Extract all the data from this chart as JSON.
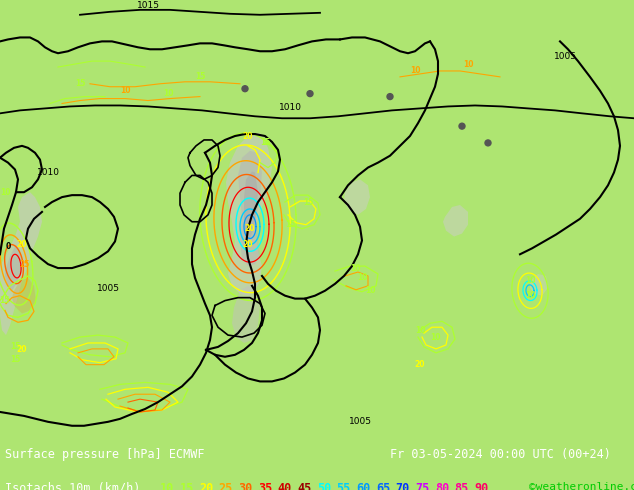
{
  "background_color": "#aee571",
  "fig_width": 6.34,
  "fig_height": 4.9,
  "dpi": 100,
  "footer_line1": "Surface pressure [hPa] ECMWF",
  "footer_line1_right": "Fr 03-05-2024 00:00 UTC (00+24)",
  "footer_line2_label": "Isotachs 10m (km/h)",
  "footer_line2_copyright": "©weatheronline.co.uk",
  "legend_values": [
    "10",
    "15",
    "20",
    "25",
    "30",
    "35",
    "40",
    "45",
    "50",
    "55",
    "60",
    "65",
    "70",
    "75",
    "80",
    "85",
    "90"
  ],
  "legend_colors": [
    "#adff2f",
    "#adff2f",
    "#ffff00",
    "#ffa500",
    "#ff6600",
    "#ff0000",
    "#cc0000",
    "#990000",
    "#00ffff",
    "#00ccff",
    "#0099ff",
    "#0066ff",
    "#0033ff",
    "#cc00ff",
    "#ff00cc",
    "#ff0099",
    "#ff0066"
  ]
}
